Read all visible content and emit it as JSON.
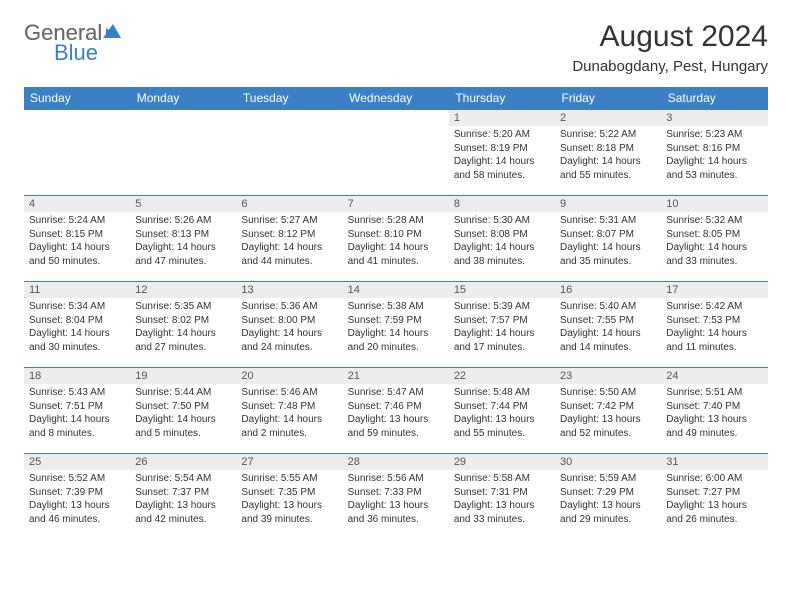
{
  "brand": {
    "general": "General",
    "blue": "Blue"
  },
  "title": "August 2024",
  "location": "Dunabogdany, Pest, Hungary",
  "colors": {
    "header_bg": "#3b7fc4",
    "header_text": "#ffffff",
    "daynum_bg": "#ededed",
    "border": "#3b7fc4",
    "text": "#333333"
  },
  "day_headers": [
    "Sunday",
    "Monday",
    "Tuesday",
    "Wednesday",
    "Thursday",
    "Friday",
    "Saturday"
  ],
  "weeks": [
    [
      null,
      null,
      null,
      null,
      {
        "n": "1",
        "sr": "5:20 AM",
        "ss": "8:19 PM",
        "dl": "14 hours and 58 minutes."
      },
      {
        "n": "2",
        "sr": "5:22 AM",
        "ss": "8:18 PM",
        "dl": "14 hours and 55 minutes."
      },
      {
        "n": "3",
        "sr": "5:23 AM",
        "ss": "8:16 PM",
        "dl": "14 hours and 53 minutes."
      }
    ],
    [
      {
        "n": "4",
        "sr": "5:24 AM",
        "ss": "8:15 PM",
        "dl": "14 hours and 50 minutes."
      },
      {
        "n": "5",
        "sr": "5:26 AM",
        "ss": "8:13 PM",
        "dl": "14 hours and 47 minutes."
      },
      {
        "n": "6",
        "sr": "5:27 AM",
        "ss": "8:12 PM",
        "dl": "14 hours and 44 minutes."
      },
      {
        "n": "7",
        "sr": "5:28 AM",
        "ss": "8:10 PM",
        "dl": "14 hours and 41 minutes."
      },
      {
        "n": "8",
        "sr": "5:30 AM",
        "ss": "8:08 PM",
        "dl": "14 hours and 38 minutes."
      },
      {
        "n": "9",
        "sr": "5:31 AM",
        "ss": "8:07 PM",
        "dl": "14 hours and 35 minutes."
      },
      {
        "n": "10",
        "sr": "5:32 AM",
        "ss": "8:05 PM",
        "dl": "14 hours and 33 minutes."
      }
    ],
    [
      {
        "n": "11",
        "sr": "5:34 AM",
        "ss": "8:04 PM",
        "dl": "14 hours and 30 minutes."
      },
      {
        "n": "12",
        "sr": "5:35 AM",
        "ss": "8:02 PM",
        "dl": "14 hours and 27 minutes."
      },
      {
        "n": "13",
        "sr": "5:36 AM",
        "ss": "8:00 PM",
        "dl": "14 hours and 24 minutes."
      },
      {
        "n": "14",
        "sr": "5:38 AM",
        "ss": "7:59 PM",
        "dl": "14 hours and 20 minutes."
      },
      {
        "n": "15",
        "sr": "5:39 AM",
        "ss": "7:57 PM",
        "dl": "14 hours and 17 minutes."
      },
      {
        "n": "16",
        "sr": "5:40 AM",
        "ss": "7:55 PM",
        "dl": "14 hours and 14 minutes."
      },
      {
        "n": "17",
        "sr": "5:42 AM",
        "ss": "7:53 PM",
        "dl": "14 hours and 11 minutes."
      }
    ],
    [
      {
        "n": "18",
        "sr": "5:43 AM",
        "ss": "7:51 PM",
        "dl": "14 hours and 8 minutes."
      },
      {
        "n": "19",
        "sr": "5:44 AM",
        "ss": "7:50 PM",
        "dl": "14 hours and 5 minutes."
      },
      {
        "n": "20",
        "sr": "5:46 AM",
        "ss": "7:48 PM",
        "dl": "14 hours and 2 minutes."
      },
      {
        "n": "21",
        "sr": "5:47 AM",
        "ss": "7:46 PM",
        "dl": "13 hours and 59 minutes."
      },
      {
        "n": "22",
        "sr": "5:48 AM",
        "ss": "7:44 PM",
        "dl": "13 hours and 55 minutes."
      },
      {
        "n": "23",
        "sr": "5:50 AM",
        "ss": "7:42 PM",
        "dl": "13 hours and 52 minutes."
      },
      {
        "n": "24",
        "sr": "5:51 AM",
        "ss": "7:40 PM",
        "dl": "13 hours and 49 minutes."
      }
    ],
    [
      {
        "n": "25",
        "sr": "5:52 AM",
        "ss": "7:39 PM",
        "dl": "13 hours and 46 minutes."
      },
      {
        "n": "26",
        "sr": "5:54 AM",
        "ss": "7:37 PM",
        "dl": "13 hours and 42 minutes."
      },
      {
        "n": "27",
        "sr": "5:55 AM",
        "ss": "7:35 PM",
        "dl": "13 hours and 39 minutes."
      },
      {
        "n": "28",
        "sr": "5:56 AM",
        "ss": "7:33 PM",
        "dl": "13 hours and 36 minutes."
      },
      {
        "n": "29",
        "sr": "5:58 AM",
        "ss": "7:31 PM",
        "dl": "13 hours and 33 minutes."
      },
      {
        "n": "30",
        "sr": "5:59 AM",
        "ss": "7:29 PM",
        "dl": "13 hours and 29 minutes."
      },
      {
        "n": "31",
        "sr": "6:00 AM",
        "ss": "7:27 PM",
        "dl": "13 hours and 26 minutes."
      }
    ]
  ],
  "labels": {
    "sunrise": "Sunrise:",
    "sunset": "Sunset:",
    "daylight": "Daylight:"
  }
}
